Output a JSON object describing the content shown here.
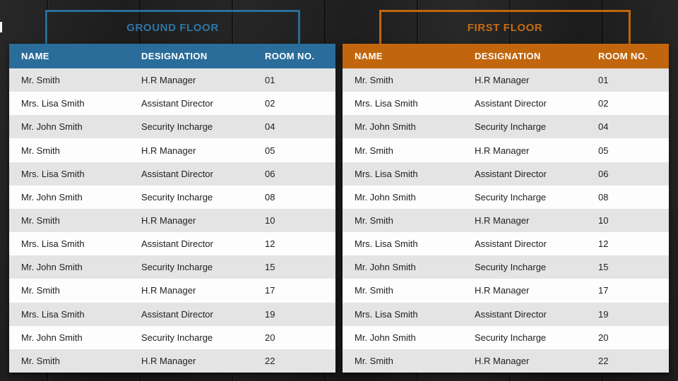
{
  "slide": {
    "background_color": "#1d1d1d",
    "row_stripe_colors": [
      "#fdfdfd",
      "#e4e4e4"
    ]
  },
  "ground_floor": {
    "title": "GROUND FLOOR",
    "accent": "#2a6d9a",
    "title_color": "#2e76a6",
    "columns": [
      "NAME",
      "DESIGNATION",
      "ROOM NO."
    ],
    "rows": [
      {
        "name": "Mr. Smith",
        "designation": "H.R Manager",
        "room": "01"
      },
      {
        "name": "Mrs. Lisa Smith",
        "designation": "Assistant Director",
        "room": "02"
      },
      {
        "name": "Mr. John Smith",
        "designation": "Security Incharge",
        "room": "04"
      },
      {
        "name": "Mr. Smith",
        "designation": "H.R Manager",
        "room": "05"
      },
      {
        "name": "Mrs. Lisa Smith",
        "designation": "Assistant Director",
        "room": "06"
      },
      {
        "name": "Mr. John Smith",
        "designation": "Security Incharge",
        "room": "08"
      },
      {
        "name": "Mr. Smith",
        "designation": "H.R Manager",
        "room": "10"
      },
      {
        "name": "Mrs. Lisa Smith",
        "designation": "Assistant Director",
        "room": "12"
      },
      {
        "name": "Mr. John Smith",
        "designation": "Security Incharge",
        "room": "15"
      },
      {
        "name": "Mr. Smith",
        "designation": "H.R Manager",
        "room": "17"
      },
      {
        "name": "Mrs. Lisa Smith",
        "designation": "Assistant Director",
        "room": "19"
      },
      {
        "name": "Mr. John Smith",
        "designation": "Security Incharge",
        "room": "20"
      },
      {
        "name": "Mr. Smith",
        "designation": "H.R Manager",
        "room": "22"
      }
    ]
  },
  "first_floor": {
    "title": "FIRST FLOOR",
    "accent": "#c1660c",
    "title_color": "#c56c12",
    "columns": [
      "NAME",
      "DESIGNATION",
      "ROOM NO."
    ],
    "rows": [
      {
        "name": "Mr. Smith",
        "designation": "H.R Manager",
        "room": "01"
      },
      {
        "name": "Mrs. Lisa Smith",
        "designation": "Assistant Director",
        "room": "02"
      },
      {
        "name": "Mr. John Smith",
        "designation": "Security Incharge",
        "room": "04"
      },
      {
        "name": "Mr. Smith",
        "designation": "H.R Manager",
        "room": "05"
      },
      {
        "name": "Mrs. Lisa Smith",
        "designation": "Assistant Director",
        "room": "06"
      },
      {
        "name": "Mr. John Smith",
        "designation": "Security Incharge",
        "room": "08"
      },
      {
        "name": "Mr. Smith",
        "designation": "H.R Manager",
        "room": "10"
      },
      {
        "name": "Mrs. Lisa Smith",
        "designation": "Assistant Director",
        "room": "12"
      },
      {
        "name": "Mr. John Smith",
        "designation": "Security Incharge",
        "room": "15"
      },
      {
        "name": "Mr. Smith",
        "designation": "H.R Manager",
        "room": "17"
      },
      {
        "name": "Mrs. Lisa Smith",
        "designation": "Assistant Director",
        "room": "19"
      },
      {
        "name": "Mr. John Smith",
        "designation": "Security Incharge",
        "room": "20"
      },
      {
        "name": "Mr. Smith",
        "designation": "H.R Manager",
        "room": "22"
      }
    ]
  }
}
